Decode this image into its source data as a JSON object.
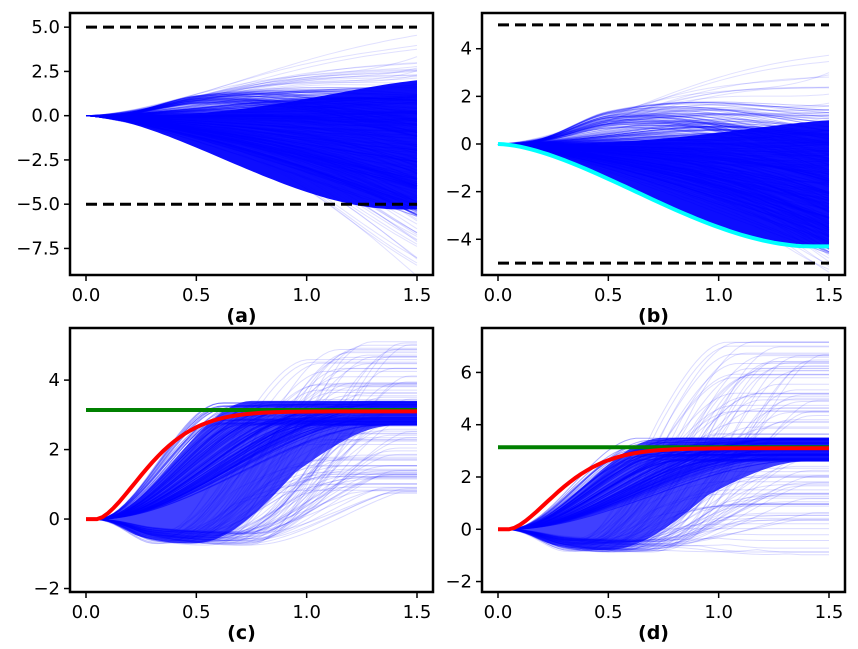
{
  "chart_data": [
    {
      "type": "line",
      "panel_label": "(a)",
      "x_range": [
        0,
        1.5
      ],
      "ylim": [
        -9.0,
        5.8
      ],
      "x_ticks": [
        0.0,
        0.5,
        1.0,
        1.5
      ],
      "x_tick_labels": [
        "0.0",
        "0.5",
        "1.0",
        "1.5"
      ],
      "y_ticks": [
        5.0,
        2.5,
        0.0,
        -2.5,
        -5.0,
        -7.5
      ],
      "y_tick_labels": [
        "5.0",
        "2.5",
        "0.0",
        "−2.5",
        "−5.0",
        "−7.5"
      ],
      "bounds": [
        5.0,
        -5.0
      ],
      "fan": {
        "start_flat_until": 0.08,
        "upper_end": 4.9,
        "lower_end": -8.4,
        "core_upper_end": 2.0,
        "core_lower_end": -5.3,
        "upper_branch_peak": 1.1,
        "color": "#0000ff"
      },
      "reference_line": null,
      "highlight_curve": null
    },
    {
      "type": "line",
      "panel_label": "(b)",
      "x_range": [
        0,
        1.5
      ],
      "ylim": [
        -5.5,
        5.5
      ],
      "x_ticks": [
        0.0,
        0.5,
        1.0,
        1.5
      ],
      "x_tick_labels": [
        "0.0",
        "0.5",
        "1.0",
        "1.5"
      ],
      "y_ticks": [
        4,
        2,
        0,
        -2,
        -4
      ],
      "y_tick_labels": [
        "4",
        "2",
        "0",
        "−2",
        "−4"
      ],
      "bounds": [
        5.0,
        -5.0
      ],
      "fan": {
        "start_flat_until": 0.08,
        "upper_end": 4.2,
        "lower_end": -4.3,
        "core_upper_end": 1.0,
        "core_lower_end": -4.25,
        "upper_branch_peak": 1.2,
        "color": "#0000ff"
      },
      "reference_line": null,
      "highlight_curve": {
        "color": "#00ffff",
        "end_value": -4.3,
        "shape": "lower-envelope"
      }
    },
    {
      "type": "line",
      "panel_label": "(c)",
      "x_range": [
        0,
        1.5
      ],
      "ylim": [
        -2.1,
        5.5
      ],
      "x_ticks": [
        0.0,
        0.5,
        1.0,
        1.5
      ],
      "x_tick_labels": [
        "0.0",
        "0.5",
        "1.0",
        "1.5"
      ],
      "y_ticks": [
        4,
        2,
        0,
        -2
      ],
      "y_tick_labels": [
        "4",
        "2",
        "0",
        "−2"
      ],
      "bounds": null,
      "fan": {
        "start_flat_until": 0.08,
        "upper_end": 5.2,
        "lower_end": 0.6,
        "core_upper_end": 3.4,
        "core_lower_end": 2.7,
        "lower_branch_dip": -0.7,
        "color": "#0000ff"
      },
      "reference_line": {
        "value": 3.14,
        "color": "#008000"
      },
      "highlight_curve": {
        "color": "#ff0000",
        "end_value": 3.1,
        "shape": "rise-to-target"
      }
    },
    {
      "type": "line",
      "panel_label": "(d)",
      "x_range": [
        0,
        1.5
      ],
      "ylim": [
        -2.4,
        7.7
      ],
      "x_ticks": [
        0.0,
        0.5,
        1.0,
        1.5
      ],
      "x_tick_labels": [
        "0.0",
        "0.5",
        "1.0",
        "1.5"
      ],
      "y_ticks": [
        6,
        4,
        2,
        0,
        -2
      ],
      "y_tick_labels": [
        "6",
        "4",
        "2",
        "0",
        "−2"
      ],
      "bounds": null,
      "fan": {
        "start_flat_until": 0.08,
        "upper_end": 7.2,
        "lower_end": -1.0,
        "core_upper_end": 3.5,
        "core_lower_end": 2.6,
        "lower_branch_dip": -0.8,
        "color": "#0000ff"
      },
      "reference_line": {
        "value": 3.14,
        "color": "#008000"
      },
      "highlight_curve": {
        "color": "#ff0000",
        "end_value": 3.1,
        "shape": "rise-to-target"
      }
    }
  ]
}
